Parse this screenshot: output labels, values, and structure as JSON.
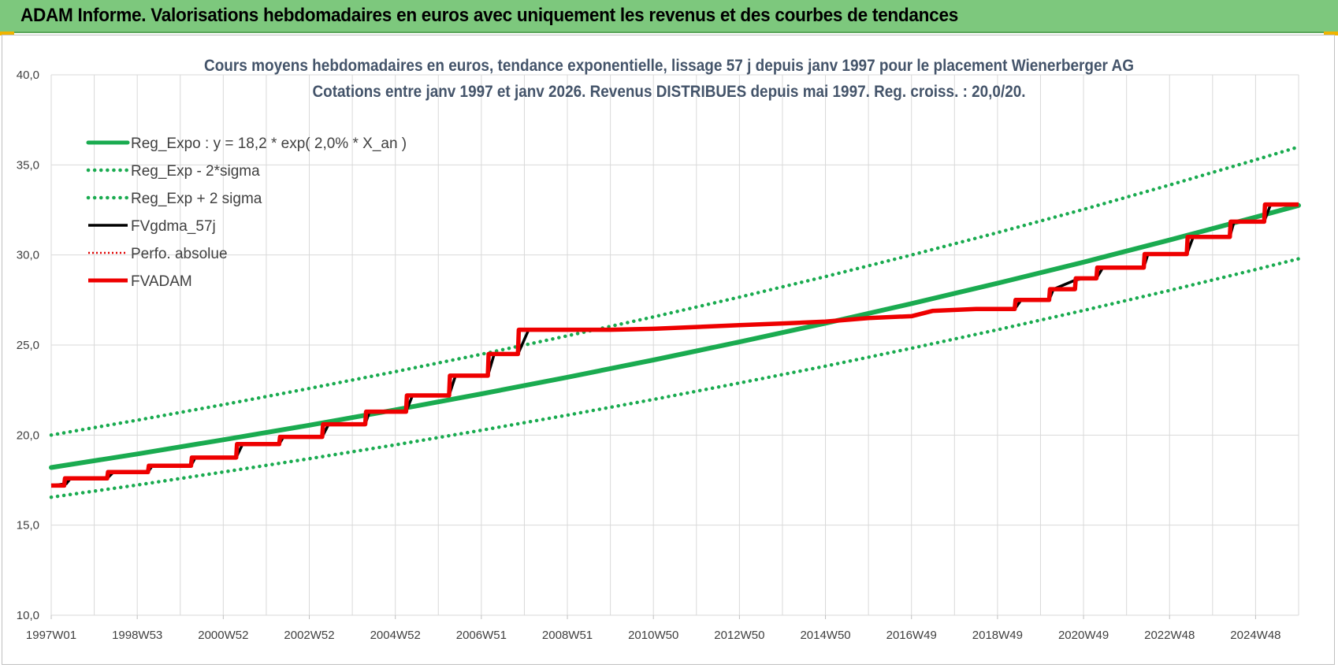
{
  "header": {
    "title": "ADAM Informe. Valorisations hebdomadaires en euros avec uniquement les revenus et des courbes de tendances"
  },
  "chart_data": {
    "type": "line",
    "title": "Cours moyens hebdomadaires en euros, tendance exponentielle, lissage 57 j depuis janv 1997  pour le placement Wienerberger AG",
    "subtitle": "Cotations entre janv 1997 et janv 2026. Revenus DISTRIBUES depuis mai 1997. Reg. croiss. : 20,0/20.",
    "xlabel": "",
    "ylabel": "",
    "ylim": [
      10,
      40
    ],
    "y_ticks": [
      "10,0",
      "15,0",
      "20,0",
      "25,0",
      "30,0",
      "35,0",
      "40,0"
    ],
    "x_range": [
      1997.0,
      2026.0
    ],
    "x_ticks": [
      {
        "label": "1997W01",
        "x": 1997.0
      },
      {
        "label": "1998W53",
        "x": 1999.0
      },
      {
        "label": "2000W52",
        "x": 2001.0
      },
      {
        "label": "2002W52",
        "x": 2003.0
      },
      {
        "label": "2004W52",
        "x": 2005.0
      },
      {
        "label": "2006W51",
        "x": 2007.0
      },
      {
        "label": "2008W51",
        "x": 2009.0
      },
      {
        "label": "2010W50",
        "x": 2011.0
      },
      {
        "label": "2012W50",
        "x": 2013.0
      },
      {
        "label": "2014W50",
        "x": 2015.0
      },
      {
        "label": "2016W49",
        "x": 2017.0
      },
      {
        "label": "2018W49",
        "x": 2019.0
      },
      {
        "label": "2020W49",
        "x": 2021.0
      },
      {
        "label": "2022W48",
        "x": 2023.0
      },
      {
        "label": "2024W48",
        "x": 2025.0
      }
    ],
    "grid": true,
    "legend_position": "top-left",
    "series": [
      {
        "name": "Reg_Expo : y = 18,2 * exp( 2,0% *  X_an )",
        "color": "#1aab50",
        "style": "solid",
        "x": [
          1997,
          1999,
          2001,
          2003,
          2005,
          2007,
          2009,
          2011,
          2013,
          2015,
          2017,
          2019,
          2021,
          2023,
          2025,
          2026
        ],
        "values": [
          18.2,
          18.95,
          19.74,
          20.55,
          21.4,
          22.29,
          23.21,
          24.17,
          25.17,
          26.21,
          27.3,
          28.43,
          29.6,
          30.83,
          32.1,
          32.75
        ]
      },
      {
        "name": "Reg_Exp - 2*sigma",
        "color": "#1aab50",
        "style": "dotted",
        "x": [
          1997,
          1999,
          2001,
          2003,
          2005,
          2007,
          2009,
          2011,
          2013,
          2015,
          2017,
          2019,
          2021,
          2023,
          2025,
          2026
        ],
        "values": [
          16.55,
          17.23,
          17.95,
          18.69,
          19.46,
          20.27,
          21.11,
          21.98,
          22.89,
          23.83,
          24.82,
          25.85,
          26.92,
          28.03,
          29.19,
          29.79
        ]
      },
      {
        "name": "Reg_Exp + 2 sigma",
        "color": "#1aab50",
        "style": "dotted",
        "x": [
          1997,
          1999,
          2001,
          2003,
          2005,
          2007,
          2009,
          2011,
          2013,
          2015,
          2017,
          2019,
          2021,
          2023,
          2025,
          2026
        ],
        "values": [
          20.0,
          20.83,
          21.69,
          22.59,
          23.52,
          24.49,
          25.51,
          26.56,
          27.66,
          28.8,
          30.0,
          31.24,
          32.53,
          33.88,
          35.28,
          36.0
        ]
      },
      {
        "name": "FVgdma_57j",
        "color": "#000000",
        "style": "solid",
        "x": [
          1997.0,
          1997.35,
          1997.45,
          1998.3,
          1998.45,
          1999.25,
          1999.35,
          2000.25,
          2000.35,
          2001.3,
          2001.45,
          2002.3,
          2002.4,
          2003.3,
          2003.45,
          2004.3,
          2004.4,
          2005.25,
          2005.4,
          2006.25,
          2006.4,
          2007.15,
          2007.3,
          2007.85,
          2008.1,
          2010.0,
          2011.0,
          2012.0,
          2013.0,
          2014.0,
          2015.0,
          2016.0,
          2017.0,
          2017.5,
          2018.5,
          2019.4,
          2019.55,
          2020.2,
          2020.3,
          2020.8,
          2021.0,
          2021.3,
          2021.45,
          2022.4,
          2022.5,
          2023.4,
          2023.55,
          2024.4,
          2024.5,
          2025.2,
          2025.35,
          2026.0
        ],
        "values": [
          17.2,
          17.3,
          17.6,
          17.6,
          17.95,
          17.95,
          18.3,
          18.3,
          18.75,
          18.75,
          19.5,
          19.5,
          19.9,
          19.9,
          20.6,
          20.6,
          21.3,
          21.3,
          22.2,
          22.2,
          23.3,
          23.3,
          24.5,
          24.5,
          25.85,
          25.85,
          25.9,
          26.0,
          26.1,
          26.2,
          26.3,
          26.5,
          26.6,
          26.9,
          27.0,
          27.0,
          27.5,
          27.5,
          28.1,
          28.6,
          28.7,
          28.7,
          29.3,
          29.3,
          30.05,
          30.05,
          31.0,
          31.0,
          31.85,
          31.85,
          32.8,
          32.8
        ]
      },
      {
        "name": "Perfo. absolue",
        "color": "#e00000",
        "style": "dotted",
        "x": [
          1997.0,
          1997.3,
          1997.32,
          1998.3,
          1998.32,
          1999.25,
          1999.27,
          2000.25,
          2000.27,
          2001.3,
          2001.32,
          2002.3,
          2002.32,
          2003.3,
          2003.32,
          2004.3,
          2004.32,
          2005.25,
          2005.27,
          2006.25,
          2006.27,
          2007.15,
          2007.17,
          2007.85,
          2007.87,
          2010.0,
          2011.0,
          2012.0,
          2013.0,
          2014.0,
          2015.0,
          2016.0,
          2017.0,
          2017.5,
          2018.5,
          2019.4,
          2019.42,
          2020.2,
          2020.22,
          2020.8,
          2020.82,
          2021.3,
          2021.32,
          2022.4,
          2022.42,
          2023.4,
          2023.42,
          2024.4,
          2024.42,
          2025.2,
          2025.22,
          2026.0
        ],
        "values": [
          17.2,
          17.2,
          17.6,
          17.6,
          17.95,
          17.95,
          18.3,
          18.3,
          18.75,
          18.75,
          19.5,
          19.5,
          19.9,
          19.9,
          20.6,
          20.6,
          21.3,
          21.3,
          22.2,
          22.2,
          23.3,
          23.3,
          24.5,
          24.5,
          25.85,
          25.85,
          25.9,
          26.0,
          26.1,
          26.2,
          26.3,
          26.5,
          26.6,
          26.9,
          27.0,
          27.0,
          27.5,
          27.5,
          28.1,
          28.1,
          28.7,
          28.7,
          29.3,
          29.3,
          30.05,
          30.05,
          31.0,
          31.0,
          31.85,
          31.85,
          32.8,
          32.8
        ]
      },
      {
        "name": "FVADAM",
        "color": "#ee0000",
        "style": "solid",
        "x": [
          1997.0,
          1997.3,
          1997.32,
          1998.3,
          1998.32,
          1999.25,
          1999.27,
          2000.25,
          2000.27,
          2001.3,
          2001.32,
          2002.3,
          2002.32,
          2003.3,
          2003.32,
          2004.3,
          2004.32,
          2005.25,
          2005.27,
          2006.25,
          2006.27,
          2007.15,
          2007.17,
          2007.85,
          2007.87,
          2010.0,
          2011.0,
          2012.0,
          2013.0,
          2014.0,
          2015.0,
          2016.0,
          2017.0,
          2017.5,
          2018.5,
          2019.4,
          2019.42,
          2020.2,
          2020.22,
          2020.8,
          2020.82,
          2021.3,
          2021.32,
          2022.4,
          2022.42,
          2023.4,
          2023.42,
          2024.4,
          2024.42,
          2025.2,
          2025.22,
          2026.0
        ],
        "values": [
          17.2,
          17.2,
          17.6,
          17.6,
          17.95,
          17.95,
          18.3,
          18.3,
          18.75,
          18.75,
          19.5,
          19.5,
          19.9,
          19.9,
          20.6,
          20.6,
          21.3,
          21.3,
          22.2,
          22.2,
          23.3,
          23.3,
          24.5,
          24.5,
          25.85,
          25.85,
          25.9,
          26.0,
          26.1,
          26.2,
          26.3,
          26.5,
          26.6,
          26.9,
          27.0,
          27.0,
          27.5,
          27.5,
          28.1,
          28.1,
          28.7,
          28.7,
          29.3,
          29.3,
          30.05,
          30.05,
          31.0,
          31.0,
          31.85,
          31.85,
          32.8,
          32.8
        ]
      }
    ]
  }
}
